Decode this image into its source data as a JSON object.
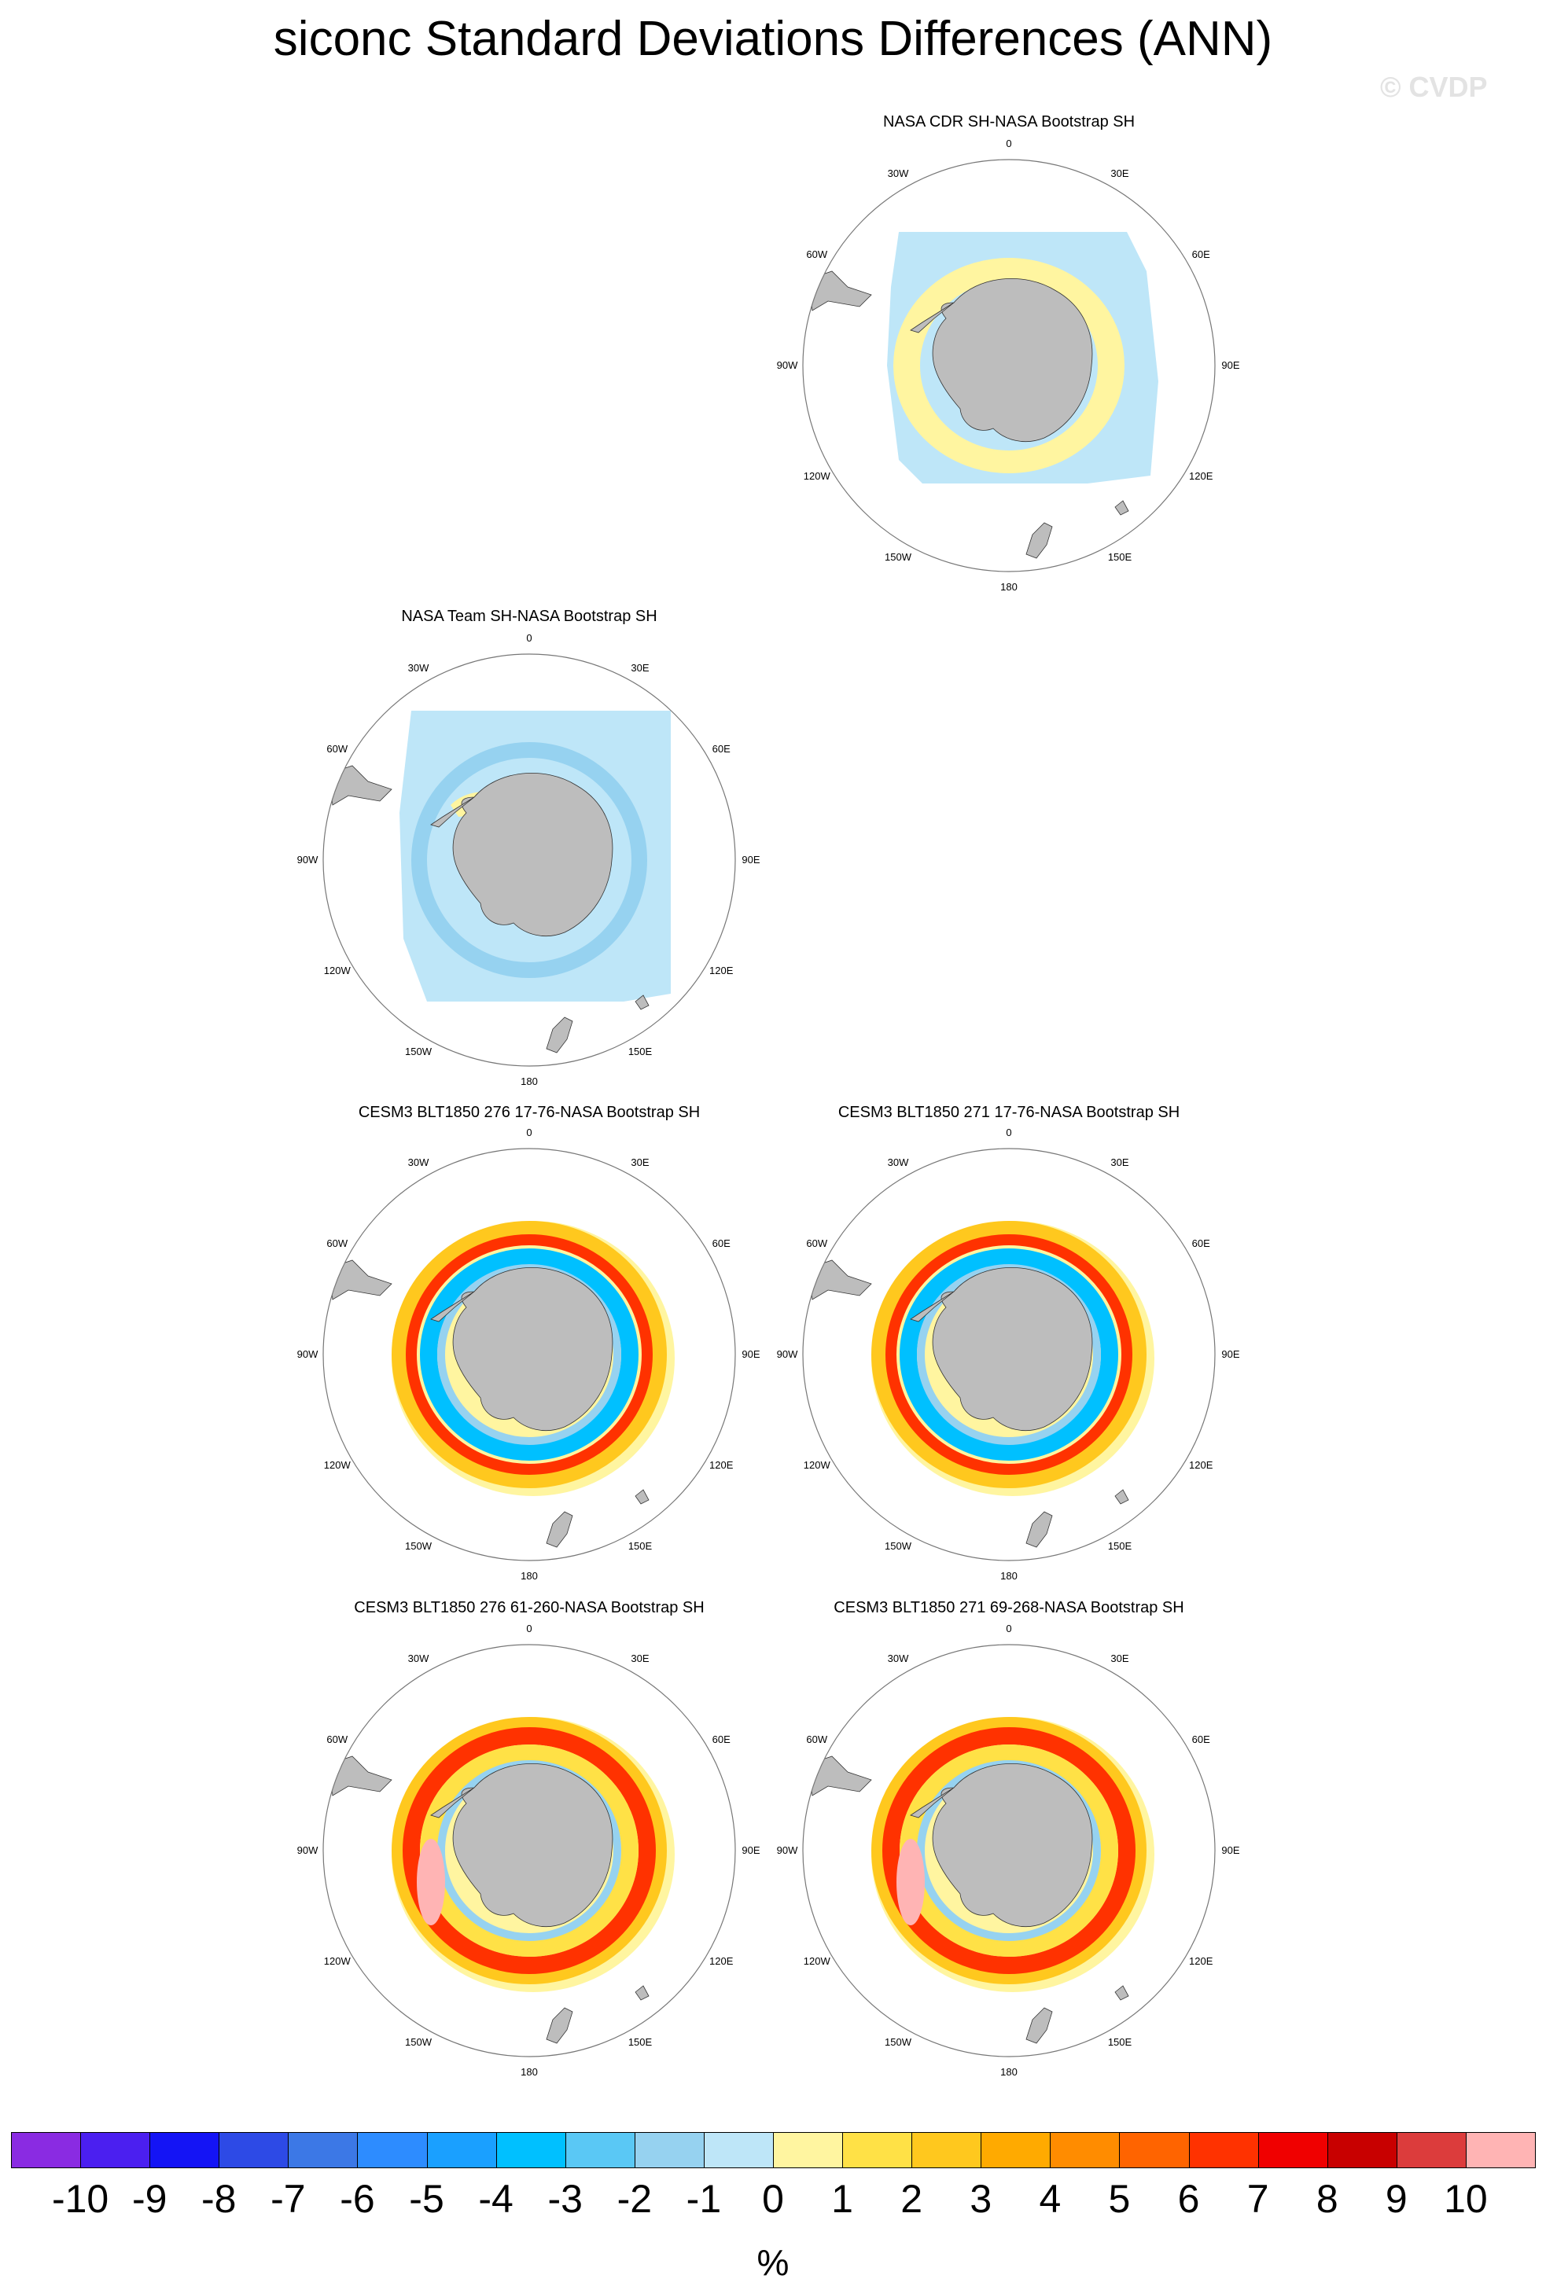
{
  "title": "siconc Standard Deviations Differences (ANN)",
  "watermark": "© CVDP",
  "units": "%",
  "lon_labels": [
    "0",
    "30E",
    "60E",
    "90E",
    "120E",
    "150E",
    "180",
    "150W",
    "120W",
    "90W",
    "60W",
    "30W"
  ],
  "panels": [
    {
      "title": "NASA CDR SH-NASA Bootstrap SH",
      "pattern": "cdr"
    },
    {
      "title": "NASA Team SH-NASA Bootstrap SH",
      "pattern": "team"
    },
    {
      "title": "CESM3 BLT1850 276 17-76-NASA Bootstrap SH",
      "pattern": "model"
    },
    {
      "title": "CESM3 BLT1850 271 17-76-NASA Bootstrap SH",
      "pattern": "model"
    },
    {
      "title": "CESM3 BLT1850 276 61-260-NASA Bootstrap SH",
      "pattern": "model_strong"
    },
    {
      "title": "CESM3 BLT1850 271 69-268-NASA Bootstrap SH",
      "pattern": "model_strong"
    }
  ],
  "colorbar": {
    "labels": [
      "-10",
      "-9",
      "-8",
      "-7",
      "-6",
      "-5",
      "-4",
      "-3",
      "-2",
      "-1",
      "0",
      "1",
      "2",
      "3",
      "4",
      "5",
      "6",
      "7",
      "8",
      "9",
      "10"
    ],
    "colors": [
      "#8a2be2",
      "#4b1ff0",
      "#1414f5",
      "#2d4ae6",
      "#3c78e6",
      "#2d8cff",
      "#1aa0ff",
      "#00c0ff",
      "#5ac8f5",
      "#96d2f0",
      "#bee6f8",
      "#fff5a0",
      "#ffe146",
      "#ffc81e",
      "#ffaa00",
      "#ff8c00",
      "#ff6400",
      "#ff3200",
      "#f00000",
      "#c80000",
      "#dc3c3c",
      "#ffb4b4"
    ]
  }
}
